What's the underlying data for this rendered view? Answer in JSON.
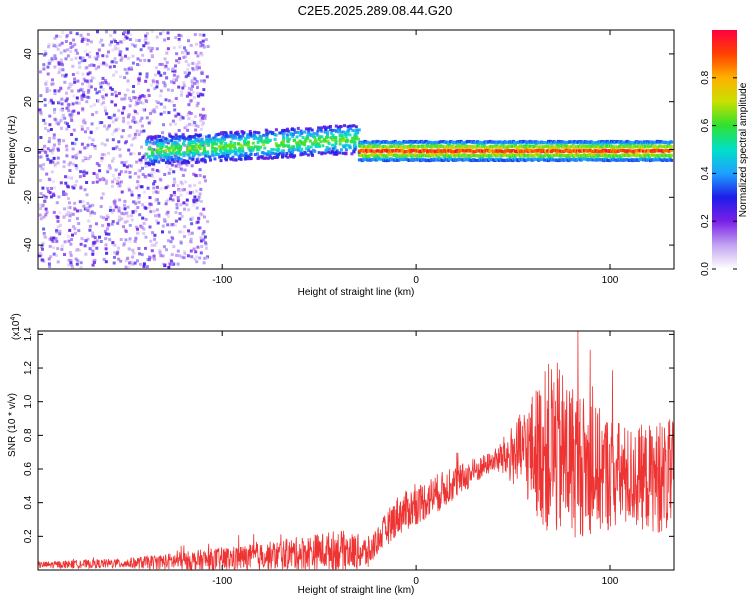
{
  "title": "C2E5.2025.289.08.44.G20",
  "chart_data": [
    {
      "type": "heatmap",
      "name": "spectrogram",
      "xlabel": "Height of straight line (km)",
      "ylabel": "Frequency (Hz)",
      "xlim": [
        -195,
        133
      ],
      "ylim": [
        -50,
        50
      ],
      "xticks": [
        -100,
        0,
        100
      ],
      "xtick_labels": [
        "-100",
        "0",
        "100"
      ],
      "yticks": [
        -40,
        -20,
        0,
        20,
        40
      ],
      "ytick_labels": [
        "-40",
        "-20",
        "0",
        "20",
        "40"
      ],
      "colorbar": {
        "label": "Normalized spectral amplitude",
        "range": [
          0,
          1
        ],
        "ticks": [
          0,
          0.2,
          0.4,
          0.6,
          0.8
        ],
        "tick_labels": [
          "0.0",
          "0.2",
          "0.4",
          "0.6",
          "0.8"
        ],
        "colormap": [
          "#ffffff",
          "#c2a3f0",
          "#7a1fe8",
          "#1e1ee8",
          "#1ea0ff",
          "#00e0c8",
          "#30e030",
          "#c8e000",
          "#ffb000",
          "#ff4000",
          "#ff0040"
        ]
      },
      "regions": [
        {
          "desc": "broadband scatter",
          "x": [
            -195,
            -108
          ],
          "y": [
            -50,
            50
          ],
          "amplitude": [
            0.05,
            0.3
          ]
        },
        {
          "desc": "signal band",
          "x": [
            -140,
            -30
          ],
          "y_center": [
            0,
            5
          ],
          "half_width": 6,
          "amplitude": [
            0.3,
            0.6
          ]
        },
        {
          "desc": "narrow carrier",
          "x": [
            -30,
            133
          ],
          "y_center": 0,
          "half_width": 4,
          "amplitude": [
            0.5,
            0.98
          ]
        }
      ]
    },
    {
      "type": "line",
      "name": "snr",
      "xlabel": "Height of straight line (km)",
      "ylabel": "SNR (10 * v/v)",
      "y_multiplier_label": "(x10",
      "y_multiplier_exp": "4",
      "y_multiplier_close": ")",
      "xlim": [
        -195,
        133
      ],
      "ylim": [
        0,
        1.42
      ],
      "xticks": [
        -100,
        0,
        100
      ],
      "xtick_labels": [
        "-100",
        "0",
        "100"
      ],
      "yticks": [
        0.2,
        0.4,
        0.6,
        0.8,
        1.0,
        1.2,
        1.4
      ],
      "ytick_labels": [
        "0.2",
        "0.4",
        "0.6",
        "0.8",
        "1.0",
        "1.2",
        "1.4"
      ],
      "line_color": "#ee3333",
      "envelope": [
        {
          "x": -195,
          "mean": 0.03,
          "amp": 0.02
        },
        {
          "x": -150,
          "mean": 0.04,
          "amp": 0.03
        },
        {
          "x": -105,
          "mean": 0.06,
          "amp": 0.07
        },
        {
          "x": -80,
          "mean": 0.08,
          "amp": 0.08
        },
        {
          "x": -40,
          "mean": 0.12,
          "amp": 0.12
        },
        {
          "x": -24,
          "mean": 0.1,
          "amp": 0.1
        },
        {
          "x": -21,
          "mean": 0.16,
          "amp": 0.08
        },
        {
          "x": -10,
          "mean": 0.32,
          "amp": 0.12
        },
        {
          "x": 10,
          "mean": 0.45,
          "amp": 0.12
        },
        {
          "x": 40,
          "mean": 0.65,
          "amp": 0.06
        },
        {
          "x": 55,
          "mean": 0.7,
          "amp": 0.25
        },
        {
          "x": 70,
          "mean": 0.72,
          "amp": 0.55
        },
        {
          "x": 90,
          "mean": 0.6,
          "amp": 0.4
        },
        {
          "x": 110,
          "mean": 0.55,
          "amp": 0.3
        },
        {
          "x": 133,
          "mean": 0.55,
          "amp": 0.35
        }
      ]
    }
  ]
}
